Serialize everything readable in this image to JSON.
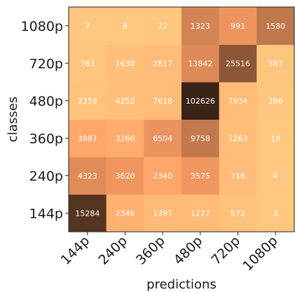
{
  "chart_data": {
    "type": "heatmap",
    "title": "",
    "xlabel": "predictions",
    "ylabel": "classes",
    "x_categories": [
      "144p",
      "240p",
      "360p",
      "480p",
      "720p",
      "1080p"
    ],
    "y_categories": [
      "144p",
      "240p",
      "360p",
      "480p",
      "720p",
      "1080p"
    ],
    "values": [
      [
        15284,
        2346,
        1397,
        1227,
        572,
        3
      ],
      [
        4323,
        3620,
        2340,
        3575,
        716,
        4
      ],
      [
        3987,
        3260,
        6504,
        9758,
        1263,
        19
      ],
      [
        2359,
        4252,
        7618,
        102626,
        7934,
        386
      ],
      [
        763,
        1630,
        2817,
        13842,
        25516,
        587
      ],
      [
        7,
        8,
        22,
        1323,
        991,
        1580
      ]
    ],
    "y_order": "bottom-to-top",
    "colormap": "copper",
    "colormap_reversed": true,
    "normalization": "row-normalized",
    "grid": false,
    "legend": "none",
    "colors": {
      "low": "#ffc880",
      "high": "#000000",
      "cell_text": "#ffffff",
      "axis_text": "#1a1a1a",
      "frame": "#222222"
    }
  }
}
